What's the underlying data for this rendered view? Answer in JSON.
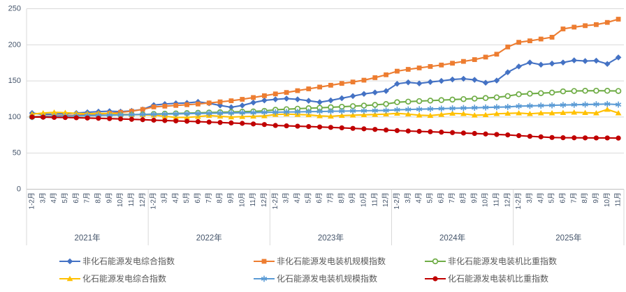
{
  "chart_data": {
    "type": "line",
    "title": "",
    "xlabel": "",
    "ylabel": "",
    "ylim": [
      0,
      250
    ],
    "y_ticks": [
      0,
      50,
      100,
      150,
      200,
      250
    ],
    "grid": true,
    "legend_position": "bottom",
    "year_groups": [
      {
        "label": "2021年",
        "months": [
          "1-2月",
          "3月",
          "4月",
          "5月",
          "6月",
          "7月",
          "8月",
          "9月",
          "10月",
          "11月",
          "12月"
        ]
      },
      {
        "label": "2022年",
        "months": [
          "1-2月",
          "3月",
          "4月",
          "5月",
          "6月",
          "7月",
          "8月",
          "9月",
          "10月",
          "11月",
          "12月"
        ]
      },
      {
        "label": "2023年",
        "months": [
          "1-2月",
          "3月",
          "4月",
          "5月",
          "6月",
          "7月",
          "8月",
          "9月",
          "10月",
          "11月",
          "12月"
        ]
      },
      {
        "label": "2024年",
        "months": [
          "1-2月",
          "3月",
          "4月",
          "5月",
          "6月",
          "7月",
          "8月",
          "9月",
          "10月",
          "11月",
          "12月"
        ]
      },
      {
        "label": "2025年",
        "months": [
          "1-2月",
          "3月",
          "4月",
          "5月",
          "6月",
          "7月",
          "8月",
          "9月",
          "10月",
          "11月"
        ]
      }
    ],
    "series": [
      {
        "name": "非化石能源发电综合指数",
        "color": "#4472C4",
        "marker": "diamond",
        "values": [
          105.5,
          103.5,
          104,
          104.5,
          105.5,
          106.5,
          107.5,
          108,
          107.5,
          108.5,
          110.5,
          116.5,
          118,
          119,
          119.5,
          121,
          119,
          116,
          113.5,
          116,
          120,
          123,
          124.5,
          125.5,
          124.5,
          122.5,
          120.5,
          123,
          126,
          129,
          132,
          134,
          136,
          146,
          148,
          146.5,
          148.5,
          150,
          152,
          153,
          151.5,
          147.5,
          150.5,
          162,
          170,
          175.5,
          172.5,
          174,
          175.5,
          178.5,
          177.5,
          178,
          173.5,
          182.5
        ]
      },
      {
        "name": "非化石能源发电装机规模指数",
        "color": "#ED7D31",
        "marker": "square",
        "values": [
          100.5,
          101,
          101.5,
          102,
          102.5,
          103,
          104,
          105,
          106.5,
          108,
          110.5,
          114,
          115,
          116,
          117,
          118,
          119.5,
          121,
          122.5,
          124.5,
          127,
          129.5,
          132,
          134,
          136.5,
          139,
          141.5,
          144,
          146.5,
          148.5,
          151,
          154.5,
          158.5,
          163.5,
          166,
          168,
          170,
          172,
          174.5,
          177,
          179.5,
          183,
          187,
          197,
          203.5,
          205.5,
          208,
          210.5,
          222,
          224.5,
          226.5,
          228,
          231,
          235.5
        ]
      },
      {
        "name": "非化石能源发电装机比重指数",
        "color": "#70AD47",
        "marker": "circle-open",
        "values": [
          100.2,
          100.5,
          100.8,
          101.1,
          101.4,
          101.8,
          102.1,
          102.4,
          102.8,
          103.1,
          103.5,
          104.2,
          104.6,
          105,
          105.4,
          105.8,
          106.2,
          106.6,
          107,
          107.4,
          107.8,
          108.5,
          110,
          110.8,
          111.5,
          112.2,
          112.8,
          113.5,
          114.2,
          115,
          115.8,
          116.8,
          118,
          120.5,
          121.3,
          122,
          122.7,
          123.4,
          124.1,
          124.8,
          125.5,
          126.3,
          127.2,
          129,
          131.5,
          132.3,
          133,
          133.8,
          135.5,
          136,
          136.3,
          136.4,
          136.3,
          136
        ]
      },
      {
        "name": "化石能源发电综合指数",
        "color": "#FFC000",
        "marker": "triangle",
        "values": [
          104,
          105.5,
          106.5,
          106,
          105,
          104.5,
          105,
          105,
          104,
          103.5,
          103,
          102.5,
          101,
          99.5,
          99.5,
          100.5,
          102,
          101,
          100,
          100.5,
          101,
          101.5,
          103.5,
          104,
          103.5,
          103,
          101.5,
          101,
          102,
          102.5,
          103,
          103.5,
          104,
          105,
          104,
          102.5,
          102,
          103.5,
          105,
          104.5,
          102.5,
          103,
          104.5,
          105,
          105.5,
          104.5,
          105.5,
          105.5,
          106,
          106.5,
          106,
          105.5,
          110.5,
          105.5
        ]
      },
      {
        "name": "化石能源发电装机规模指数",
        "color": "#5B9BD5",
        "marker": "asterisk",
        "values": [
          100,
          100.4,
          100.8,
          101.2,
          101.6,
          102,
          102.3,
          102.6,
          103,
          103.3,
          103.6,
          103.8,
          104,
          104.3,
          104.6,
          104.9,
          105.1,
          105.4,
          105.6,
          105.9,
          106.1,
          106.4,
          106.6,
          106.9,
          107.1,
          107.4,
          107.6,
          107.9,
          108.1,
          108.4,
          108.6,
          108.9,
          109.1,
          110,
          110.4,
          110.8,
          111.2,
          111.6,
          112,
          112.4,
          112.8,
          113.2,
          113.6,
          114,
          115,
          115.4,
          115.8,
          116.2,
          116.6,
          117,
          117.3,
          117.6,
          118,
          117.2
        ]
      },
      {
        "name": "化石能源发电装机比重指数",
        "color": "#C00000",
        "marker": "circle",
        "values": [
          100,
          99.8,
          99.5,
          99.3,
          99,
          98.6,
          98.2,
          97.8,
          97.3,
          96.8,
          96.3,
          95.6,
          95.1,
          94.6,
          94.1,
          93.6,
          93,
          92.4,
          91.8,
          91.2,
          90.4,
          89.6,
          88.3,
          87.8,
          87.3,
          86.8,
          86.2,
          85.6,
          85,
          84.3,
          83.6,
          82.8,
          82,
          81.2,
          80.6,
          80.1,
          79.6,
          79,
          78.4,
          77.8,
          77.2,
          76.5,
          75.8,
          75.2,
          74.2,
          73.3,
          72.5,
          71.6,
          71.3,
          71.2,
          71.1,
          71,
          71,
          70.8
        ]
      }
    ],
    "colors": {
      "gridline": "#D9D9D9",
      "axis_line": "#BFBFBF",
      "axis_text": "#44546A",
      "legend_text": "#595959",
      "background": "#FFFFFF"
    }
  }
}
